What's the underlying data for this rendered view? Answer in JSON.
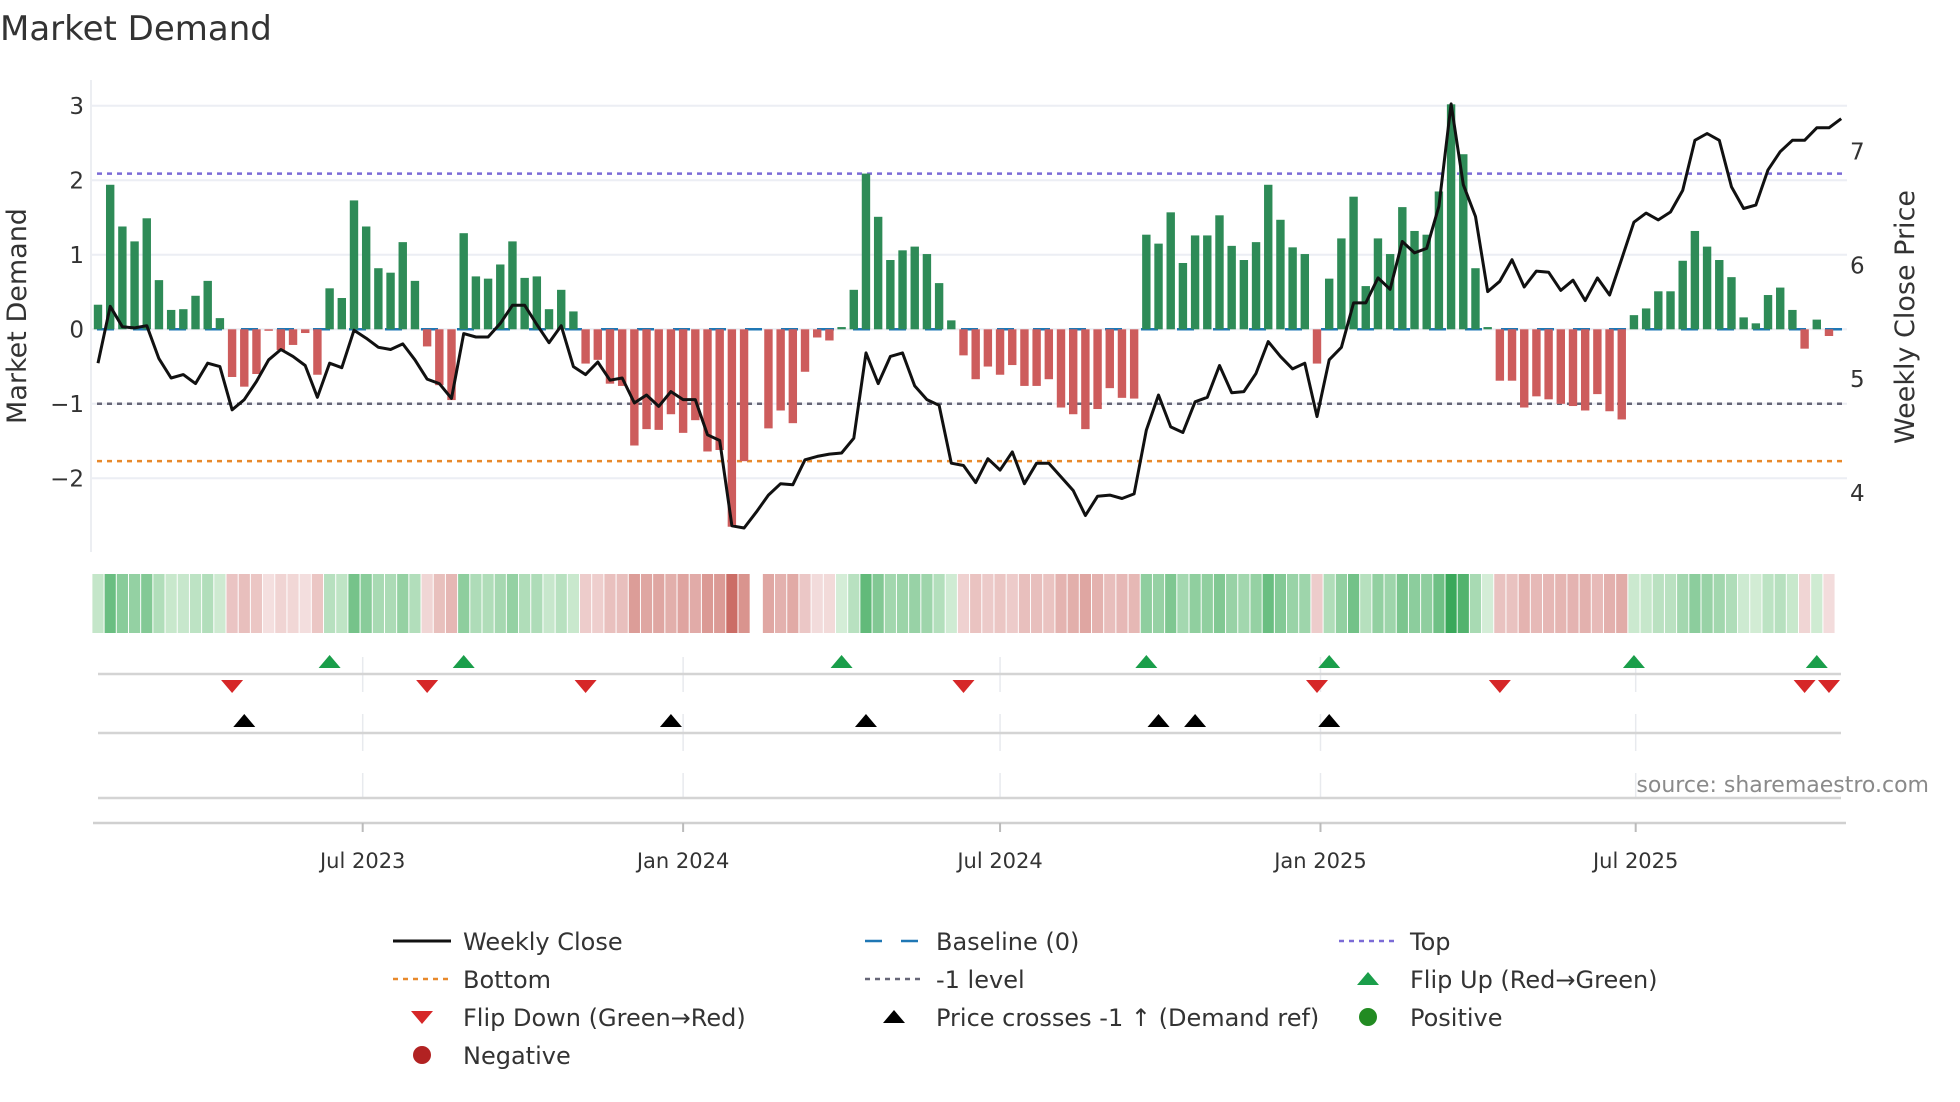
{
  "title": "Market Demand",
  "source": "source: sharemaestro.com",
  "colors": {
    "positive_bar": "#2e8b57",
    "negative_bar": "#cd5c5c",
    "price_line": "#111111",
    "baseline": "#1f77b4",
    "top": "#7b6bd6",
    "bottom": "#e8892b",
    "minus_one": "#666677",
    "flip_up": "#1a9e4a",
    "flip_down": "#d62728",
    "price_cross": "#000000",
    "positive_dot": "#228b22",
    "negative_dot": "#b22222"
  },
  "chart_data": {
    "type": "bar",
    "frequency": "weekly",
    "start_date": "2023-01-30",
    "left_axis": {
      "label": "Market Demand",
      "ticks": [
        3,
        2,
        1,
        0,
        -1,
        -2
      ],
      "tick_labels": [
        "3",
        "2",
        "1",
        "0",
        "−1",
        "−2"
      ],
      "ylim": [
        -3.0,
        3.3
      ]
    },
    "right_axis": {
      "label": "Weekly Close Price",
      "ticks": [
        7,
        6,
        5,
        4
      ],
      "tick_labels": [
        "7",
        "6",
        "5",
        "4"
      ],
      "ylim": [
        3.5,
        7.6
      ]
    },
    "x_ticks": [
      {
        "label": "Jul 2023",
        "date": "2023-07-01"
      },
      {
        "label": "Jan 2024",
        "date": "2024-01-01"
      },
      {
        "label": "Jul 2024",
        "date": "2024-07-01"
      },
      {
        "label": "Jan 2025",
        "date": "2025-01-01"
      },
      {
        "label": "Jul 2025",
        "date": "2025-07-01"
      }
    ],
    "levels": {
      "baseline": 0,
      "top": 2.09,
      "bottom": -1.77,
      "minus_one": -1
    },
    "demand": [
      0.33,
      1.94,
      1.38,
      1.18,
      1.49,
      0.66,
      0.26,
      0.27,
      0.45,
      0.65,
      0.15,
      -0.64,
      -0.77,
      -0.6,
      -0.02,
      -0.28,
      -0.21,
      -0.05,
      -0.61,
      0.55,
      0.42,
      1.73,
      1.38,
      0.82,
      0.76,
      1.17,
      0.65,
      -0.23,
      -0.75,
      -0.95,
      1.29,
      0.71,
      0.68,
      0.87,
      1.18,
      0.69,
      0.71,
      0.27,
      0.53,
      0.24,
      -0.46,
      -0.41,
      -0.73,
      -0.76,
      -1.56,
      -1.34,
      -1.35,
      -1.14,
      -1.39,
      -1.22,
      -1.64,
      -1.62,
      -2.65,
      -1.77,
      0,
      -1.33,
      -1.09,
      -1.26,
      -0.57,
      -0.11,
      -0.15,
      0.03,
      0.53,
      2.09,
      1.51,
      0.93,
      1.06,
      1.11,
      1.01,
      0.62,
      0.12,
      -0.35,
      -0.67,
      -0.5,
      -0.61,
      -0.48,
      -0.76,
      -0.76,
      -0.67,
      -1.05,
      -1.14,
      -1.34,
      -1.07,
      -0.79,
      -0.92,
      -0.93,
      1.27,
      1.15,
      1.57,
      0.89,
      1.26,
      1.26,
      1.53,
      1.12,
      0.93,
      1.17,
      1.94,
      1.47,
      1.1,
      1.01,
      -0.46,
      0.68,
      1.22,
      1.78,
      0.58,
      1.22,
      1.01,
      1.64,
      1.32,
      1.27,
      1.85,
      3.02,
      2.35,
      0.82,
      0.03,
      -0.69,
      -0.69,
      -1.05,
      -0.9,
      -0.94,
      -1.0,
      -1.03,
      -1.09,
      -0.87,
      -1.1,
      -1.21,
      0.19,
      0.28,
      0.51,
      0.51,
      0.92,
      1.32,
      1.11,
      0.93,
      0.7,
      0.16,
      0.08,
      0.46,
      0.56,
      0.26,
      -0.26,
      0.13,
      -0.09,
      0
    ],
    "price": [
      5.14,
      5.64,
      5.46,
      5.45,
      5.47,
      5.18,
      5.01,
      5.04,
      4.96,
      5.14,
      5.11,
      4.73,
      4.82,
      4.98,
      5.17,
      5.26,
      5.2,
      5.12,
      4.84,
      5.14,
      5.1,
      5.43,
      5.36,
      5.28,
      5.26,
      5.31,
      5.17,
      5.0,
      4.96,
      4.83,
      5.4,
      5.37,
      5.37,
      5.49,
      5.65,
      5.65,
      5.48,
      5.32,
      5.47,
      5.11,
      5.04,
      5.15,
      4.99,
      5.01,
      4.79,
      4.86,
      4.76,
      4.89,
      4.82,
      4.82,
      4.51,
      4.46,
      3.71,
      3.69,
      3.83,
      3.98,
      4.08,
      4.07,
      4.29,
      4.32,
      4.34,
      4.35,
      4.48,
      5.23,
      4.96,
      5.2,
      5.23,
      4.94,
      4.82,
      4.77,
      4.26,
      4.24,
      4.09,
      4.3,
      4.2,
      4.36,
      4.08,
      4.26,
      4.26,
      4.14,
      4.02,
      3.8,
      3.97,
      3.98,
      3.95,
      3.99,
      4.55,
      4.86,
      4.58,
      4.53,
      4.8,
      4.84,
      5.12,
      4.88,
      4.89,
      5.05,
      5.33,
      5.2,
      5.09,
      5.14,
      4.67,
      5.17,
      5.28,
      5.67,
      5.67,
      5.89,
      5.79,
      6.21,
      6.11,
      6.15,
      6.52,
      7.42,
      6.71,
      6.43,
      5.77,
      5.86,
      6.05,
      5.81,
      5.95,
      5.94,
      5.78,
      5.87,
      5.69,
      5.89,
      5.74,
      6.06,
      6.38,
      6.46,
      6.4,
      6.47,
      6.66,
      7.1,
      7.16,
      7.1,
      6.69,
      6.5,
      6.53,
      6.84,
      7.0,
      7.1,
      7.1,
      7.21,
      7.21,
      7.29
    ],
    "flip_up_weeks": [
      19,
      30,
      61,
      86,
      101,
      126,
      141
    ],
    "flip_down_weeks": [
      11,
      27,
      40,
      71,
      100,
      115,
      140,
      142
    ],
    "price_cross_weeks": [
      12,
      47,
      63,
      87,
      90,
      101
    ],
    "legend": [
      {
        "label": "Weekly Close",
        "symbol": "solid-line"
      },
      {
        "label": "Baseline (0)",
        "symbol": "dashed-line"
      },
      {
        "label": "Top",
        "symbol": "dotted-line"
      },
      {
        "label": "Bottom",
        "symbol": "dotted-line"
      },
      {
        "label": "-1 level",
        "symbol": "dotted-line"
      },
      {
        "label": "Flip Up (Red→Green)",
        "symbol": "triangle-up"
      },
      {
        "label": "Flip Down (Green→Red)",
        "symbol": "triangle-down"
      },
      {
        "label": "Price crosses -1 ↑ (Demand ref)",
        "symbol": "triangle-up"
      },
      {
        "label": "Positive",
        "symbol": "circle"
      },
      {
        "label": "Negative",
        "symbol": "circle"
      }
    ],
    "legend_placement": "bottom"
  }
}
